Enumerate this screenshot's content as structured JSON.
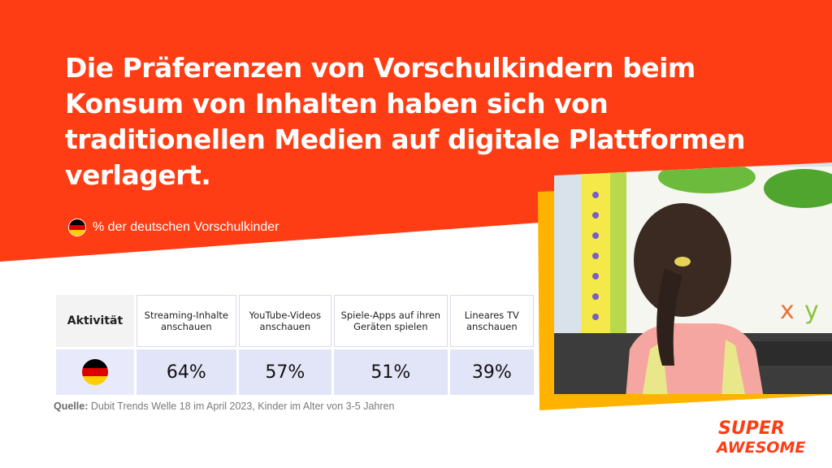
{
  "title": "Die Präferenzen von Vorschulkindern beim Konsum von Inhalten haben sich von traditionellen Medien auf digitale Plattformen verlagert.",
  "subtitle": "% der deutschen Vorschulkinder",
  "table": {
    "header_first": "Aktivität",
    "columns": [
      "Streaming-Inhalte anschauen",
      "YouTube-Videos anschauen",
      "Spiele-Apps auf ihren Geräten spielen",
      "Lineares TV anschauen"
    ],
    "values": [
      "64%",
      "57%",
      "51%",
      "39%"
    ]
  },
  "source_label": "Quelle:",
  "source_text": "Dubit Trends Welle 18 im April 2023, Kinder im Alter von 3-5 Jahren",
  "logo": {
    "line1": "SUPER",
    "line2": "AWESOME"
  },
  "colors": {
    "orange": "#ff3d14",
    "yellow": "#ffb300",
    "table_value_bg": "#e2e4f8",
    "flag_black": "#000000",
    "flag_red": "#dd0000",
    "flag_gold": "#ffce00"
  },
  "icons": [
    "germany-flag-icon",
    "child-photo"
  ]
}
